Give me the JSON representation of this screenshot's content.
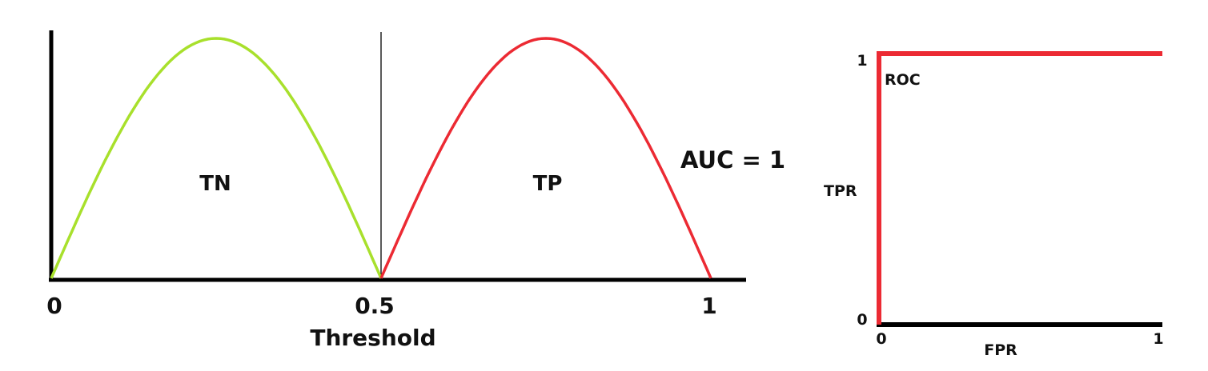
{
  "colors": {
    "negative_curve": "#a8e02c",
    "positive_curve": "#ec2a33",
    "roc_curve": "#ec2a33",
    "axis": "#000000",
    "text": "#111111"
  },
  "chart_data": [
    {
      "type": "line",
      "title": "",
      "xlabel": "Threshold",
      "ylabel": "",
      "xlim": [
        0,
        1
      ],
      "x_ticks": [
        "0",
        "0.5",
        "1"
      ],
      "annotation": "AUC = 1",
      "series": [
        {
          "name": "TN",
          "x": [
            0,
            0.05,
            0.1,
            0.15,
            0.2,
            0.25,
            0.3,
            0.35,
            0.4,
            0.45,
            0.5
          ],
          "y": [
            0,
            0.31,
            0.59,
            0.81,
            0.95,
            1.0,
            0.95,
            0.81,
            0.59,
            0.31,
            0
          ]
        },
        {
          "name": "TP",
          "x": [
            0.5,
            0.55,
            0.6,
            0.65,
            0.7,
            0.75,
            0.8,
            0.85,
            0.9,
            0.95,
            1.0
          ],
          "y": [
            0,
            0.31,
            0.59,
            0.81,
            0.95,
            1.0,
            0.95,
            0.81,
            0.59,
            0.31,
            0
          ]
        }
      ],
      "threshold": 0.5
    },
    {
      "type": "line",
      "title": "",
      "curve_label": "ROC",
      "xlabel": "FPR",
      "ylabel": "TPR",
      "xlim": [
        0,
        1
      ],
      "ylim": [
        0,
        1
      ],
      "x_ticks": [
        "0",
        "1"
      ],
      "y_ticks": [
        "0",
        "1"
      ],
      "series": [
        {
          "name": "",
          "x": [
            0,
            0,
            1
          ],
          "y": [
            0,
            1,
            1
          ]
        }
      ]
    }
  ]
}
